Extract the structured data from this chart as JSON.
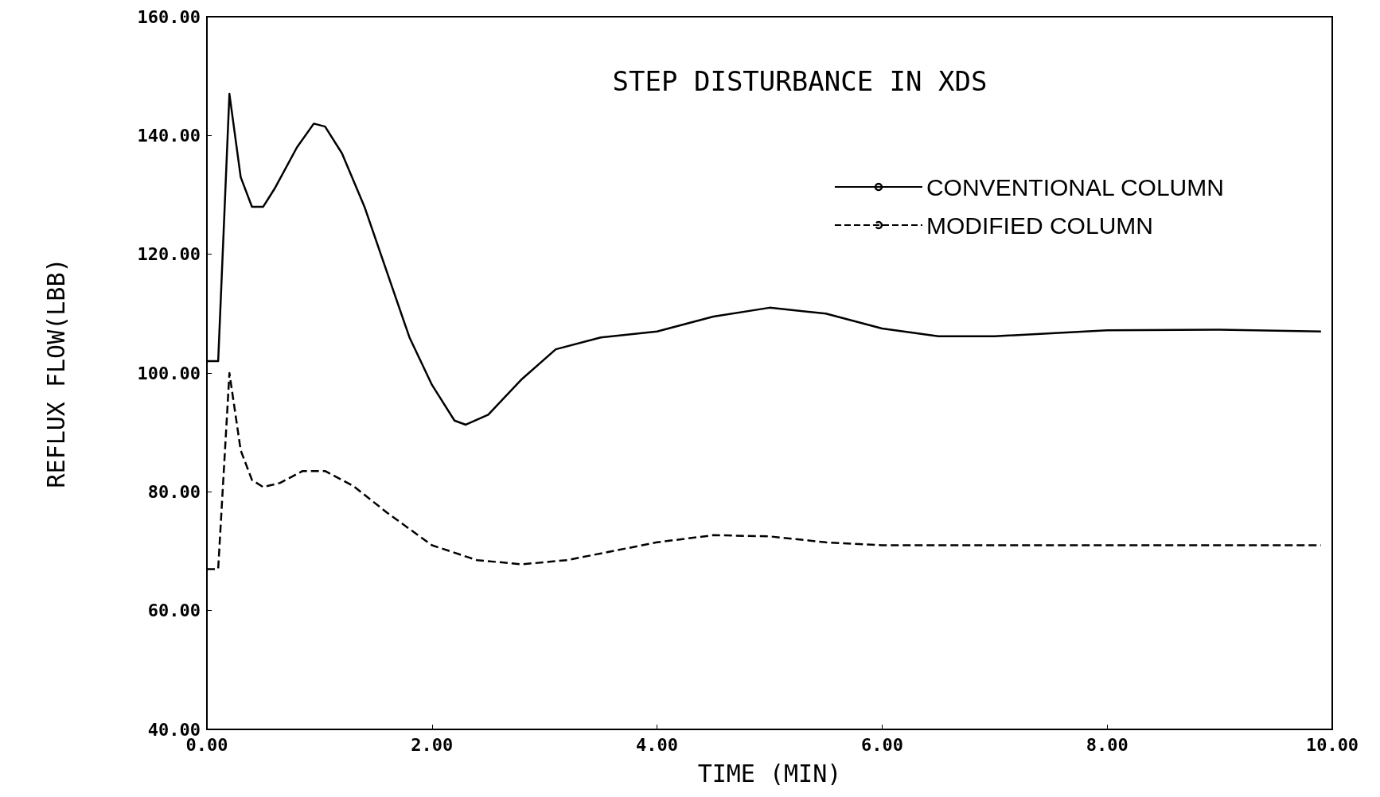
{
  "chart_data": {
    "type": "line",
    "title": "STEP DISTURBANCE IN XDS",
    "xlabel": "TIME (MIN)",
    "ylabel": "REFLUX FLOW(LBB)",
    "xlim": [
      0,
      10
    ],
    "ylim": [
      40,
      160
    ],
    "xticks": [
      {
        "value": 0,
        "label": "0.00"
      },
      {
        "value": 2,
        "label": "2.00"
      },
      {
        "value": 4,
        "label": "4.00"
      },
      {
        "value": 6,
        "label": "6.00"
      },
      {
        "value": 8,
        "label": "8.00"
      },
      {
        "value": 10,
        "label": "10.00"
      }
    ],
    "yticks": [
      {
        "value": 40,
        "label": "40.00"
      },
      {
        "value": 60,
        "label": "60.00"
      },
      {
        "value": 80,
        "label": "80.00"
      },
      {
        "value": 100,
        "label": "100.00"
      },
      {
        "value": 120,
        "label": "120.00"
      },
      {
        "value": 140,
        "label": "140.00"
      },
      {
        "value": 160,
        "label": "160.00"
      }
    ],
    "grid": false,
    "legend": "top right",
    "marker": "none",
    "series": [
      {
        "name": "CONVENTIONAL COLUMN",
        "color": "#000000",
        "line_style": "solid",
        "x": [
          0,
          0.1,
          0.2,
          0.3,
          0.4,
          0.5,
          0.6,
          0.8,
          0.95,
          1.05,
          1.2,
          1.4,
          1.6,
          1.8,
          2.0,
          2.2,
          2.3,
          2.5,
          2.8,
          3.1,
          3.5,
          4.0,
          4.5,
          5.0,
          5.5,
          6.0,
          6.5,
          7.0,
          8.0,
          9.0,
          9.9
        ],
        "values": [
          102,
          102,
          147,
          133,
          128,
          128,
          131,
          138,
          142,
          141.5,
          137,
          128,
          117,
          106,
          98,
          92,
          91.3,
          93,
          99,
          104,
          106,
          107,
          109.5,
          111,
          110,
          107.5,
          106.2,
          106.2,
          107.2,
          107.3,
          107
        ]
      },
      {
        "name": "MODIFIED COLUMN",
        "color": "#000000",
        "line_style": "dashed",
        "x": [
          0,
          0.1,
          0.2,
          0.3,
          0.4,
          0.5,
          0.65,
          0.85,
          1.05,
          1.3,
          1.6,
          2.0,
          2.4,
          2.8,
          3.2,
          3.6,
          4.0,
          4.5,
          5.0,
          5.5,
          6.0,
          7.0,
          8.0,
          9.0,
          9.9
        ],
        "values": [
          67,
          67,
          100,
          87,
          82,
          80.8,
          81.5,
          83.5,
          83.5,
          81,
          76.5,
          71,
          68.5,
          67.8,
          68.5,
          70,
          71.5,
          72.7,
          72.5,
          71.5,
          71,
          71,
          71,
          71,
          71
        ]
      }
    ]
  }
}
